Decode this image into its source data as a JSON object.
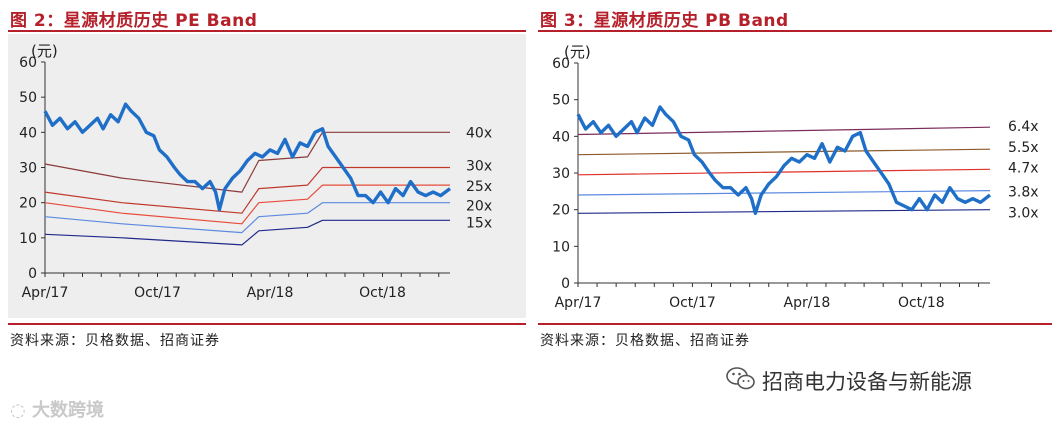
{
  "charts": {
    "left_title": "图 2：星源材质历史 PE Band",
    "right_title": "图 3：星源材质历史 PB Band",
    "left_source": "资料来源：贝格数据、招商证券",
    "right_source": "资料来源：贝格数据、招商证券"
  },
  "footer": {
    "wechat_name": "招商电力设备与新能源",
    "watermark": "大数跨境"
  },
  "chart_data": [
    {
      "type": "line",
      "title": "图 2：星源材质历史 PE Band",
      "ylabel": "(元)",
      "ylim": [
        0,
        60
      ],
      "yticks": [
        "0",
        "10",
        "20",
        "30",
        "40",
        "50",
        "60"
      ],
      "xticks": [
        "Apr/17",
        "Oct/17",
        "Apr/18",
        "Oct/18"
      ],
      "x_months": [
        "2017-04",
        "2017-10",
        "2018-04",
        "2018-10"
      ],
      "grid": false,
      "series": [
        {
          "name": "40x",
          "color": "#8b3a3a",
          "points": [
            [
              0,
              31
            ],
            [
              4.1,
              27
            ],
            [
              10.5,
              23
            ],
            [
              11.4,
              32
            ],
            [
              14.0,
              33
            ],
            [
              14.8,
              40
            ],
            [
              21.6,
              40
            ]
          ]
        },
        {
          "name": "30x",
          "color": "#c0392b",
          "points": [
            [
              0,
              23
            ],
            [
              4.1,
              20
            ],
            [
              10.5,
              17
            ],
            [
              11.4,
              24
            ],
            [
              14.0,
              25
            ],
            [
              14.8,
              30
            ],
            [
              21.6,
              30
            ]
          ]
        },
        {
          "name": "25x",
          "color": "#e74c3c",
          "points": [
            [
              0,
              20
            ],
            [
              4.1,
              17
            ],
            [
              10.5,
              14
            ],
            [
              11.4,
              20
            ],
            [
              14.0,
              21
            ],
            [
              14.8,
              25
            ],
            [
              21.6,
              25
            ]
          ]
        },
        {
          "name": "20x",
          "color": "#5b8ae0",
          "points": [
            [
              0,
              16
            ],
            [
              4.1,
              14
            ],
            [
              10.5,
              11.5
            ],
            [
              11.4,
              16
            ],
            [
              14.0,
              17
            ],
            [
              14.8,
              20
            ],
            [
              21.6,
              20
            ]
          ]
        },
        {
          "name": "15x",
          "color": "#1f2a8a",
          "points": [
            [
              0,
              11
            ],
            [
              4.1,
              10
            ],
            [
              10.5,
              8
            ],
            [
              11.4,
              12
            ],
            [
              14.0,
              13
            ],
            [
              14.8,
              15
            ],
            [
              21.6,
              15
            ]
          ]
        },
        {
          "name": "",
          "color": "#1f6fc8",
          "points": [
            [
              0,
              46
            ],
            [
              0.4,
              42
            ],
            [
              0.8,
              44
            ],
            [
              1.2,
              41
            ],
            [
              1.6,
              43
            ],
            [
              2.0,
              40
            ],
            [
              2.4,
              42
            ],
            [
              2.8,
              44
            ],
            [
              3.1,
              41
            ],
            [
              3.5,
              45
            ],
            [
              3.9,
              43
            ],
            [
              4.3,
              48
            ],
            [
              4.6,
              46
            ],
            [
              5.0,
              44
            ],
            [
              5.4,
              40
            ],
            [
              5.8,
              39
            ],
            [
              6.1,
              35
            ],
            [
              6.5,
              33
            ],
            [
              6.9,
              30
            ],
            [
              7.2,
              28
            ],
            [
              7.6,
              26
            ],
            [
              8.0,
              26
            ],
            [
              8.4,
              24
            ],
            [
              8.8,
              26
            ],
            [
              9.1,
              23
            ],
            [
              9.3,
              18
            ],
            [
              9.6,
              24
            ],
            [
              10.0,
              27
            ],
            [
              10.4,
              29
            ],
            [
              10.8,
              32
            ],
            [
              11.2,
              34
            ],
            [
              11.6,
              33
            ],
            [
              12.0,
              35
            ],
            [
              12.4,
              34
            ],
            [
              12.8,
              38
            ],
            [
              13.2,
              33
            ],
            [
              13.6,
              37
            ],
            [
              14.0,
              36
            ],
            [
              14.4,
              40
            ],
            [
              14.8,
              41
            ],
            [
              15.1,
              36
            ],
            [
              15.5,
              33
            ],
            [
              15.9,
              30
            ],
            [
              16.3,
              27
            ],
            [
              16.7,
              22
            ],
            [
              17.1,
              22
            ],
            [
              17.5,
              20
            ],
            [
              17.9,
              23
            ],
            [
              18.3,
              20
            ],
            [
              18.7,
              24
            ],
            [
              19.1,
              22
            ],
            [
              19.5,
              26
            ],
            [
              19.9,
              23
            ],
            [
              20.3,
              22
            ],
            [
              20.7,
              23
            ],
            [
              21.1,
              22
            ],
            [
              21.6,
              24
            ]
          ]
        }
      ]
    },
    {
      "type": "line",
      "title": "图 3：星源材质历史 PB Band",
      "ylabel": "(元)",
      "ylim": [
        0,
        60
      ],
      "yticks": [
        "0",
        "10",
        "20",
        "30",
        "40",
        "50",
        "60"
      ],
      "xticks": [
        "Apr/17",
        "Oct/17",
        "Apr/18",
        "Oct/18"
      ],
      "x_months": [
        "2017-04",
        "2017-10",
        "2018-04",
        "2018-10"
      ],
      "grid": false,
      "series": [
        {
          "name": "6.4x",
          "color": "#7b2c5a",
          "points": [
            [
              0,
              40.5
            ],
            [
              21.6,
              42.5
            ]
          ]
        },
        {
          "name": "5.5x",
          "color": "#8b5a2b",
          "points": [
            [
              0,
              35
            ],
            [
              21.6,
              36.5
            ]
          ]
        },
        {
          "name": "4.7x",
          "color": "#e0302a",
          "points": [
            [
              0,
              29.5
            ],
            [
              21.6,
              31
            ]
          ]
        },
        {
          "name": "3.8x",
          "color": "#5b8ae0",
          "points": [
            [
              0,
              24
            ],
            [
              21.6,
              25.2
            ]
          ]
        },
        {
          "name": "3.0x",
          "color": "#1f2a8a",
          "points": [
            [
              0,
              19
            ],
            [
              21.6,
              20
            ]
          ]
        },
        {
          "name": "",
          "color": "#1f6fc8",
          "points": [
            [
              0,
              46
            ],
            [
              0.4,
              42
            ],
            [
              0.8,
              44
            ],
            [
              1.2,
              41
            ],
            [
              1.6,
              43
            ],
            [
              2.0,
              40
            ],
            [
              2.4,
              42
            ],
            [
              2.8,
              44
            ],
            [
              3.1,
              41
            ],
            [
              3.5,
              45
            ],
            [
              3.9,
              43
            ],
            [
              4.3,
              48
            ],
            [
              4.6,
              46
            ],
            [
              5.0,
              44
            ],
            [
              5.4,
              40
            ],
            [
              5.8,
              39
            ],
            [
              6.1,
              35
            ],
            [
              6.5,
              33
            ],
            [
              6.9,
              30
            ],
            [
              7.2,
              28
            ],
            [
              7.6,
              26
            ],
            [
              8.0,
              26
            ],
            [
              8.4,
              24
            ],
            [
              8.8,
              26
            ],
            [
              9.1,
              23
            ],
            [
              9.3,
              19
            ],
            [
              9.6,
              24
            ],
            [
              10.0,
              27
            ],
            [
              10.4,
              29
            ],
            [
              10.8,
              32
            ],
            [
              11.2,
              34
            ],
            [
              11.6,
              33
            ],
            [
              12.0,
              35
            ],
            [
              12.4,
              34
            ],
            [
              12.8,
              38
            ],
            [
              13.2,
              33
            ],
            [
              13.6,
              37
            ],
            [
              14.0,
              36
            ],
            [
              14.4,
              40
            ],
            [
              14.8,
              41
            ],
            [
              15.1,
              36
            ],
            [
              15.5,
              33
            ],
            [
              15.9,
              30
            ],
            [
              16.3,
              27
            ],
            [
              16.7,
              22
            ],
            [
              17.1,
              21
            ],
            [
              17.5,
              20
            ],
            [
              17.9,
              23
            ],
            [
              18.3,
              20
            ],
            [
              18.7,
              24
            ],
            [
              19.1,
              22
            ],
            [
              19.5,
              26
            ],
            [
              19.9,
              23
            ],
            [
              20.3,
              22
            ],
            [
              20.7,
              23
            ],
            [
              21.1,
              22
            ],
            [
              21.6,
              24
            ]
          ]
        }
      ]
    }
  ]
}
